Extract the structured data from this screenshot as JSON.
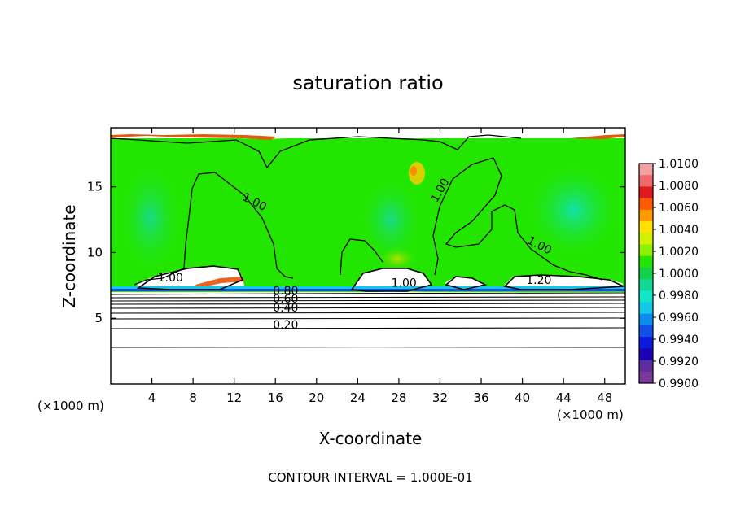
{
  "chart_data": {
    "type": "heatmap",
    "title": "saturation ratio",
    "xlabel": "X-coordinate",
    "ylabel": "Z-coordinate",
    "x_unit": "(×1000 m)",
    "footer": "CONTOUR INTERVAL = 1.000E-01",
    "xlim": [
      0,
      50
    ],
    "ylim": [
      0,
      19.5
    ],
    "x_ticks": [
      4,
      8,
      12,
      16,
      20,
      24,
      28,
      32,
      36,
      40,
      44,
      48
    ],
    "y_ticks": [
      5,
      10,
      15
    ],
    "colorbar": {
      "labels": [
        "1.0100",
        "1.0080",
        "1.0060",
        "1.0040",
        "1.0020",
        "1.0000",
        "0.9980",
        "0.9960",
        "0.9940",
        "0.9920",
        "0.9900"
      ],
      "colors": [
        "#f2a0a0",
        "#ee6a6a",
        "#e11b1b",
        "#ff5a00",
        "#ff9a00",
        "#ffe200",
        "#d2f200",
        "#8cf000",
        "#22e600",
        "#11d24a",
        "#12d896",
        "#10e6c8",
        "#12c8e8",
        "#0c8cf0",
        "#1050e8",
        "#0a1ae0",
        "#1c00b4",
        "#5c2ca0",
        "#7a3a9a"
      ]
    },
    "contour_labels": [
      {
        "text": "1.00",
        "x": 13.8,
        "z": 13.6
      },
      {
        "text": "1.00",
        "x": 32.3,
        "z": 14.6
      },
      {
        "text": "1.00",
        "x": 41.5,
        "z": 10.3
      },
      {
        "text": "1.00",
        "x": 28.5,
        "z": 7.4
      },
      {
        "text": "1.00",
        "x": 5.8,
        "z": 7.8
      },
      {
        "text": "1.20",
        "x": 41.6,
        "z": 7.6
      },
      {
        "text": "0.80",
        "x": 17.0,
        "z": 6.8
      },
      {
        "text": "0.60",
        "x": 17.0,
        "z": 6.2
      },
      {
        "text": "0.40",
        "x": 17.0,
        "z": 5.5
      },
      {
        "text": "0.20",
        "x": 17.0,
        "z": 4.2
      }
    ],
    "cloud_base_z": 7.2,
    "contour_levels_below": [
      0.1,
      0.2,
      0.3,
      0.4,
      0.5,
      0.6,
      0.7,
      0.8,
      0.9
    ]
  }
}
